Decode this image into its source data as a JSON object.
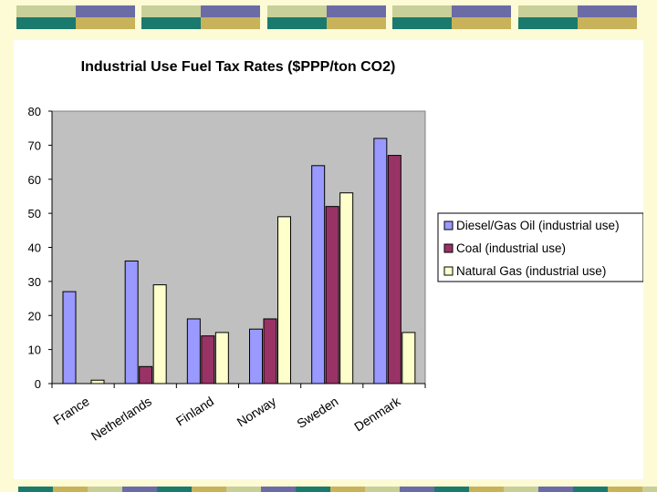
{
  "slide": {
    "accent_colors": {
      "teal": "#1a7a6e",
      "olive_light": "#c8cf98",
      "slate_blue": "#6b6ba6",
      "gold": "#c8b25a",
      "pale": "#fdfbd6"
    }
  },
  "chart_data": {
    "type": "bar",
    "title": "Industrial Use Fuel Tax Rates ($PPP/ton CO2)",
    "xlabel": "",
    "ylabel": "",
    "ylim": [
      0,
      80
    ],
    "yticks": [
      0,
      10,
      20,
      30,
      40,
      50,
      60,
      70,
      80
    ],
    "grid": false,
    "legend_position": "right",
    "categories": [
      "France",
      "Netherlands",
      "Finland",
      "Norway",
      "Sweden",
      "Denmark"
    ],
    "series": [
      {
        "name": "Diesel/Gas Oil  (industrial use)",
        "color": "#9999ff",
        "values": [
          27,
          36,
          19,
          16,
          64,
          72
        ]
      },
      {
        "name": "Coal (industrial use)",
        "color": "#993366",
        "values": [
          0,
          5,
          14,
          19,
          52,
          67
        ]
      },
      {
        "name": "Natural Gas (industrial use)",
        "color": "#ffffcc",
        "values": [
          1,
          29,
          15,
          49,
          56,
          15
        ]
      }
    ]
  }
}
